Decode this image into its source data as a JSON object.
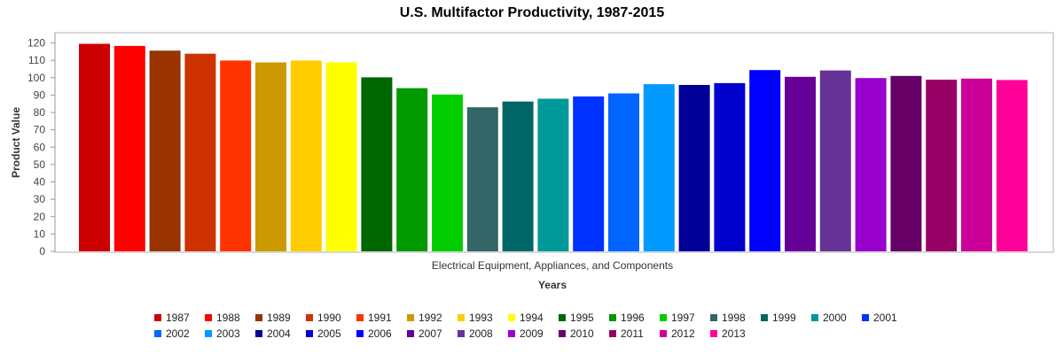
{
  "chart_data": {
    "type": "bar",
    "title": "U.S. Multifactor Productivity, 1987-2015",
    "xlabel": "Years",
    "ylabel": "Product Value",
    "categories": [
      "Electrical Equipment, Appliances, and Components"
    ],
    "ylim": [
      0,
      125
    ],
    "yticks": [
      0,
      10,
      20,
      30,
      40,
      50,
      60,
      70,
      80,
      90,
      100,
      110,
      120
    ],
    "grid": false,
    "legend_position": "bottom",
    "series": [
      {
        "name": "1987",
        "values": [
          119.5
        ],
        "color": "#cc0000"
      },
      {
        "name": "1988",
        "values": [
          118.3
        ],
        "color": "#ff0000"
      },
      {
        "name": "1989",
        "values": [
          115.6
        ],
        "color": "#993300"
      },
      {
        "name": "1990",
        "values": [
          113.8
        ],
        "color": "#cc3300"
      },
      {
        "name": "1991",
        "values": [
          109.9
        ],
        "color": "#ff3300"
      },
      {
        "name": "1992",
        "values": [
          108.8
        ],
        "color": "#cc9900"
      },
      {
        "name": "1993",
        "values": [
          109.9
        ],
        "color": "#ffcc00"
      },
      {
        "name": "1994",
        "values": [
          108.8
        ],
        "color": "#ffff00"
      },
      {
        "name": "1995",
        "values": [
          100.2
        ],
        "color": "#006600"
      },
      {
        "name": "1996",
        "values": [
          94.0
        ],
        "color": "#009900"
      },
      {
        "name": "1997",
        "values": [
          90.3
        ],
        "color": "#00cc00"
      },
      {
        "name": "1998",
        "values": [
          83.0
        ],
        "color": "#336666"
      },
      {
        "name": "1999",
        "values": [
          86.3
        ],
        "color": "#006666"
      },
      {
        "name": "2000",
        "values": [
          87.9
        ],
        "color": "#009999"
      },
      {
        "name": "2001",
        "values": [
          89.2
        ],
        "color": "#0033ff"
      },
      {
        "name": "2002",
        "values": [
          91.0
        ],
        "color": "#0066ff"
      },
      {
        "name": "2003",
        "values": [
          96.3
        ],
        "color": "#0099ff"
      },
      {
        "name": "2004",
        "values": [
          95.8
        ],
        "color": "#000099"
      },
      {
        "name": "2005",
        "values": [
          96.9
        ],
        "color": "#0000cc"
      },
      {
        "name": "2006",
        "values": [
          104.4
        ],
        "color": "#0000ff"
      },
      {
        "name": "2007",
        "values": [
          100.5
        ],
        "color": "#660099"
      },
      {
        "name": "2008",
        "values": [
          104.2
        ],
        "color": "#663399"
      },
      {
        "name": "2009",
        "values": [
          99.8
        ],
        "color": "#9900cc"
      },
      {
        "name": "2010",
        "values": [
          101.0
        ],
        "color": "#660066"
      },
      {
        "name": "2011",
        "values": [
          98.9
        ],
        "color": "#990066"
      },
      {
        "name": "2012",
        "values": [
          99.5
        ],
        "color": "#cc0099"
      },
      {
        "name": "2013",
        "values": [
          98.7
        ],
        "color": "#ff0099"
      }
    ]
  }
}
